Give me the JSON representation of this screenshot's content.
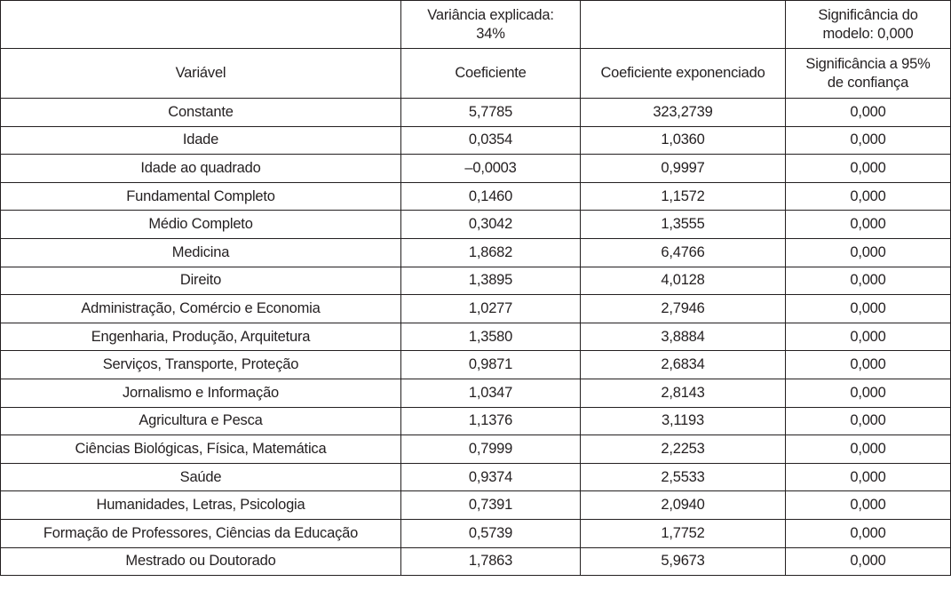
{
  "table": {
    "top_header": {
      "col1": "",
      "col2_line1": "Variância explicada:",
      "col2_line2": "34%",
      "col3": "",
      "col4_line1": "Significância do",
      "col4_line2": "modelo: 0,000"
    },
    "columns": {
      "variavel": "Variável",
      "coeficiente": "Coeficiente",
      "coeficiente_exponenciado": "Coeficiente exponenciado",
      "significancia_line1": "Significância a 95%",
      "significancia_line2": "de confiança"
    },
    "rows": [
      {
        "variavel": "Constante",
        "coeficiente": "5,7785",
        "exp": "323,2739",
        "sig": "0,000"
      },
      {
        "variavel": "Idade",
        "coeficiente": "0,0354",
        "exp": "1,0360",
        "sig": "0,000"
      },
      {
        "variavel": "Idade ao quadrado",
        "coeficiente": "–0,0003",
        "exp": "0,9997",
        "sig": "0,000"
      },
      {
        "variavel": "Fundamental Completo",
        "coeficiente": "0,1460",
        "exp": "1,1572",
        "sig": "0,000"
      },
      {
        "variavel": "Médio Completo",
        "coeficiente": "0,3042",
        "exp": "1,3555",
        "sig": "0,000"
      },
      {
        "variavel": "Medicina",
        "coeficiente": "1,8682",
        "exp": "6,4766",
        "sig": "0,000"
      },
      {
        "variavel": "Direito",
        "coeficiente": "1,3895",
        "exp": "4,0128",
        "sig": "0,000"
      },
      {
        "variavel": "Administração, Comércio e Economia",
        "coeficiente": "1,0277",
        "exp": "2,7946",
        "sig": "0,000"
      },
      {
        "variavel": "Engenharia, Produção, Arquitetura",
        "coeficiente": "1,3580",
        "exp": "3,8884",
        "sig": "0,000"
      },
      {
        "variavel": "Serviços, Transporte, Proteção",
        "coeficiente": "0,9871",
        "exp": "2,6834",
        "sig": "0,000"
      },
      {
        "variavel": "Jornalismo e Informação",
        "coeficiente": "1,0347",
        "exp": "2,8143",
        "sig": "0,000"
      },
      {
        "variavel": "Agricultura e Pesca",
        "coeficiente": "1,1376",
        "exp": "3,1193",
        "sig": "0,000"
      },
      {
        "variavel": "Ciências Biológicas, Física, Matemática",
        "coeficiente": "0,7999",
        "exp": "2,2253",
        "sig": "0,000"
      },
      {
        "variavel": "Saúde",
        "coeficiente": "0,9374",
        "exp": "2,5533",
        "sig": "0,000"
      },
      {
        "variavel": "Humanidades, Letras, Psicologia",
        "coeficiente": "0,7391",
        "exp": "2,0940",
        "sig": "0,000"
      },
      {
        "variavel": "Formação de Professores, Ciências da Educação",
        "coeficiente": "0,5739",
        "exp": "1,7752",
        "sig": "0,000"
      },
      {
        "variavel": "Mestrado ou Doutorado",
        "coeficiente": "1,7863",
        "exp": "5,9673",
        "sig": "0,000"
      }
    ]
  }
}
